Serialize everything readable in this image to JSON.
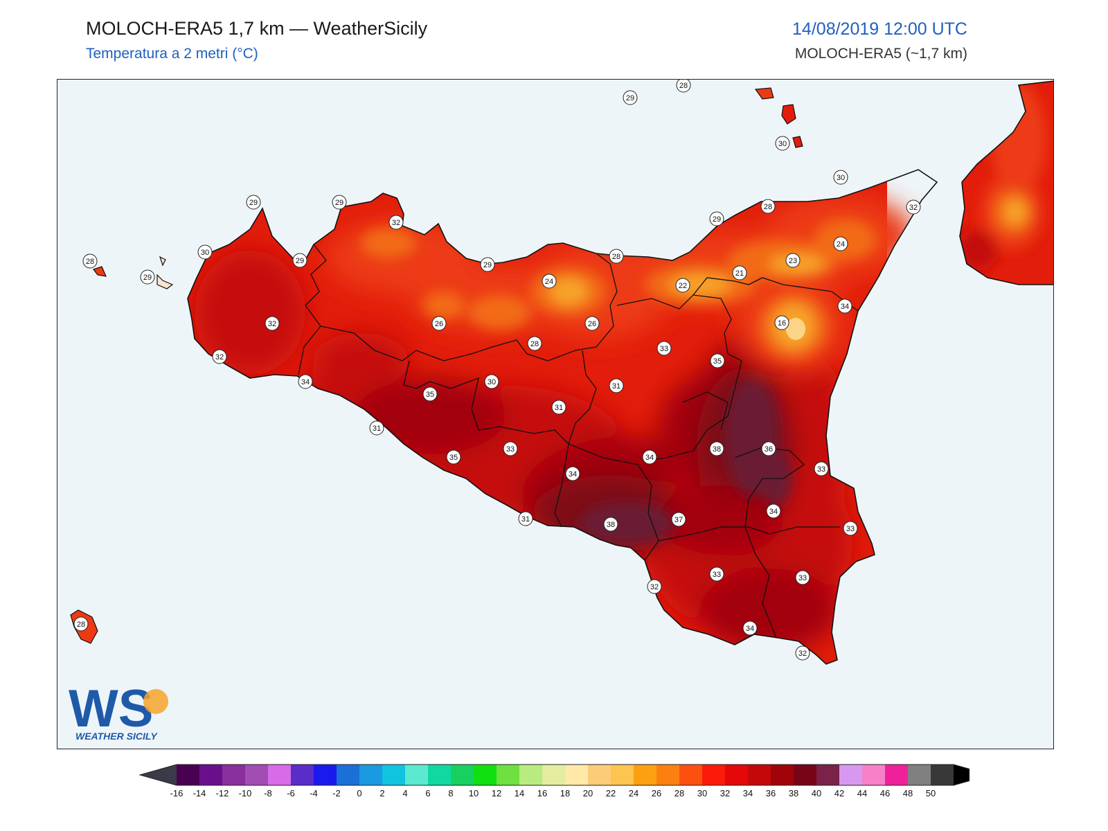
{
  "header": {
    "title": "MOLOCH-ERA5 1,7 km — WeatherSicily",
    "subtitle": "Temperatura a 2 metri (°C)",
    "datetime": "14/08/2019 12:00 UTC",
    "model": "MOLOCH-ERA5 (~1,7 km)"
  },
  "logo": {
    "letters": "WS",
    "name": "WEATHER SICILY"
  },
  "colors": {
    "sea": "#eef5f9",
    "border": "#111111",
    "t24": "#f7a32a",
    "t26": "#f26b18",
    "t28": "#ec3a12",
    "t30": "#e21d0b",
    "t32": "#c50d09",
    "t34": "#a2060b",
    "t36": "#7e0716",
    "t38": "#6a1a35"
  },
  "stations": [
    {
      "v": "29"
    },
    {
      "v": "28"
    },
    {
      "v": "29"
    },
    {
      "v": "30"
    },
    {
      "v": "30"
    },
    {
      "v": "32"
    },
    {
      "v": "28"
    },
    {
      "v": "29"
    },
    {
      "v": "29"
    },
    {
      "v": "32"
    },
    {
      "v": "29"
    },
    {
      "v": "28"
    },
    {
      "v": "24"
    },
    {
      "v": "23"
    },
    {
      "v": "21"
    },
    {
      "v": "22"
    },
    {
      "v": "24"
    },
    {
      "v": "34"
    },
    {
      "v": "16"
    },
    {
      "v": "30"
    },
    {
      "v": "29"
    },
    {
      "v": "32"
    },
    {
      "v": "26"
    },
    {
      "v": "26"
    },
    {
      "v": "28"
    },
    {
      "v": "33"
    },
    {
      "v": "35"
    },
    {
      "v": "32"
    },
    {
      "v": "34"
    },
    {
      "v": "30"
    },
    {
      "v": "31"
    },
    {
      "v": "31"
    },
    {
      "v": "35"
    },
    {
      "v": "31"
    },
    {
      "v": "35"
    },
    {
      "v": "33"
    },
    {
      "v": "34"
    },
    {
      "v": "34"
    },
    {
      "v": "38"
    },
    {
      "v": "36"
    },
    {
      "v": "33"
    },
    {
      "v": "34"
    },
    {
      "v": "33"
    },
    {
      "v": "37"
    },
    {
      "v": "38"
    },
    {
      "v": "31"
    },
    {
      "v": "32"
    },
    {
      "v": "33"
    },
    {
      "v": "33"
    },
    {
      "v": "34"
    },
    {
      "v": "32"
    },
    {
      "v": "28"
    },
    {
      "v": "28"
    },
    {
      "v": "29"
    }
  ],
  "colorbar": {
    "labels": [
      "-16",
      "-14",
      "-12",
      "-10",
      "-8",
      "-6",
      "-4",
      "-2",
      "0",
      "2",
      "4",
      "6",
      "8",
      "10",
      "12",
      "14",
      "16",
      "18",
      "20",
      "22",
      "24",
      "26",
      "28",
      "30",
      "32",
      "34",
      "36",
      "38",
      "40",
      "42",
      "44",
      "46",
      "48",
      "50"
    ],
    "colors": [
      "#4a0050",
      "#6a0f8c",
      "#8a2f9e",
      "#a24db3",
      "#d86be8",
      "#5a2cc8",
      "#1a1aee",
      "#1b70d8",
      "#1a9ae0",
      "#10c4e0",
      "#5de8d0",
      "#10d8a0",
      "#18d060",
      "#10e010",
      "#70e040",
      "#b8ec80",
      "#e4eca0",
      "#ffe8a8",
      "#fccc78",
      "#fcc450",
      "#fca010",
      "#fc8010",
      "#fc5010",
      "#fc1a0a",
      "#e4080a",
      "#c4080a",
      "#a0040a",
      "#780418",
      "#7a2248",
      "#d898f0",
      "#f880c8",
      "#f0209a",
      "#808080",
      "#383838"
    ],
    "under_color": "#3a3a48",
    "over_color": "#000000"
  }
}
